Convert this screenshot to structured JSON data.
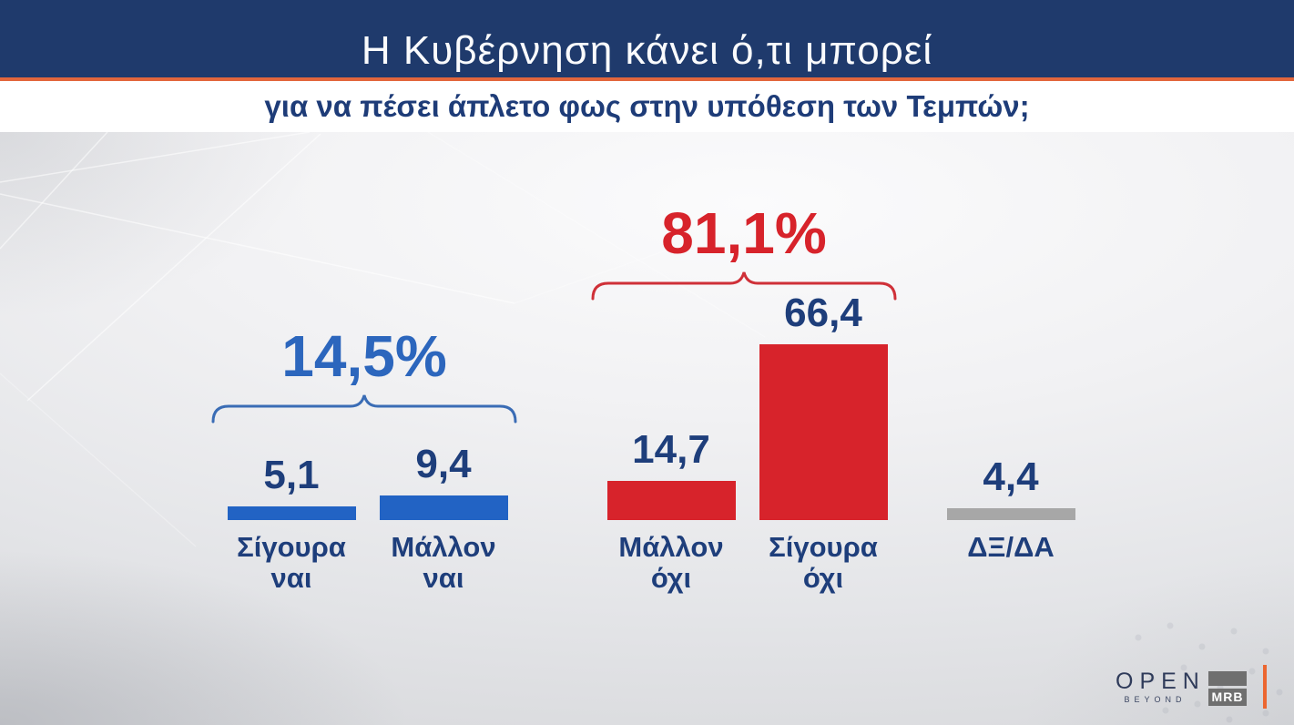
{
  "header": {
    "title": "Η Κυβέρνηση κάνει ό,τι μπορεί",
    "subtitle": "για να πέσει άπλετο φως στην υπόθεση των Τεμπών;"
  },
  "chart_data": {
    "type": "bar",
    "title": "Η Κυβέρνηση κάνει ό,τι μπορεί για να πέσει άπλετο φως στην υπόθεση των Τεμπών;",
    "unit": "%",
    "categories": [
      "Σίγουρα ναι",
      "Μάλλον ναι",
      "Μάλλον όχι",
      "Σίγουρα όχι",
      "ΔΞ/ΔΑ"
    ],
    "category_lines": [
      [
        "Σίγουρα",
        "ναι"
      ],
      [
        "Μάλλον",
        "ναι"
      ],
      [
        "Μάλλον",
        "όχι"
      ],
      [
        "Σίγουρα",
        "όχι"
      ],
      [
        "ΔΞ/ΔΑ"
      ]
    ],
    "values": [
      5.1,
      9.4,
      14.7,
      66.4,
      4.4
    ],
    "value_labels": [
      "5,1",
      "9,4",
      "14,7",
      "66,4",
      "4,4"
    ],
    "bar_colors": [
      "#2263c4",
      "#2263c4",
      "#d7232b",
      "#d7232b",
      "#a7a7a7"
    ],
    "groups": [
      {
        "label": "14,5%",
        "value": 14.5,
        "color": "#3a6cb5",
        "span": [
          "Σίγουρα ναι",
          "Μάλλον ναι"
        ]
      },
      {
        "label": "81,1%",
        "value": 81.1,
        "color": "#cf3038",
        "span": [
          "Μάλλον όχι",
          "Σίγουρα όχι"
        ]
      }
    ],
    "xlabel": "",
    "ylabel": "",
    "ylim": [
      0,
      100
    ],
    "grid": false,
    "axes_hidden": true,
    "legend": "none"
  },
  "colors": {
    "banner_bg": "#1f3a6c",
    "orange_accent": "#e2663c",
    "navy_text": "#1e3e7b",
    "blue_bar": "#2263c4",
    "red_bar": "#d7232b",
    "gray_bar": "#a7a7a7",
    "footer_orange": "#ec6630"
  },
  "footer": {
    "open_logo": "OPEN",
    "open_tagline": "BEYOND",
    "mrb_logo": "MRB"
  }
}
